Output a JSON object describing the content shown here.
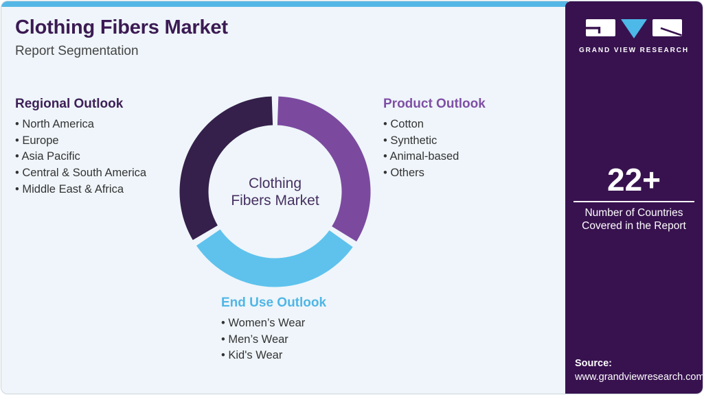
{
  "header": {
    "title": "Clothing Fibers Market",
    "subtitle": "Report Segmentation"
  },
  "outlooks": {
    "regional": {
      "heading": "Regional Outlook",
      "items": [
        "North America",
        "Europe",
        "Asia Pacific",
        "Central & South America",
        "Middle East & Africa"
      ]
    },
    "product": {
      "heading": "Product Outlook",
      "items": [
        "Cotton",
        "Synthetic",
        "Animal-based",
        "Others"
      ]
    },
    "end_use": {
      "heading": "End Use Outlook",
      "items": [
        "Women’s Wear",
        "Men’s Wear",
        "Kid's Wear"
      ]
    }
  },
  "chart_data": {
    "type": "donut",
    "title": "Clothing Fibers Market Report Segmentation",
    "center_label": {
      "line1": "Clothing",
      "line2": "Fibers Market"
    },
    "inner_radius_ratio": 0.7,
    "segments": [
      {
        "name": "Product Outlook",
        "color": "#7b4a9f",
        "start_angle": 2,
        "end_angle": 121.5
      },
      {
        "name": "End Use Outlook",
        "color": "#5ec2ed",
        "start_angle": 125.5,
        "end_angle": 235.5
      },
      {
        "name": "Regional Outlook",
        "color": "#34204a",
        "start_angle": 239.5,
        "end_angle": 358
      }
    ]
  },
  "sidebar": {
    "logo": {
      "brand": "GRAND VIEW RESEARCH"
    },
    "stat": {
      "value": "22+",
      "caption_line1": "Number of Countries",
      "caption_line2": "Covered in the Report"
    },
    "source": {
      "label": "Source:",
      "url": "www.grandviewresearch.com"
    }
  },
  "colors": {
    "accent_bar": "#55b7e5",
    "background": "#eff5fa",
    "sidebar_background": "#38124f",
    "title": "#3b1a53",
    "regional_heading": "#3e2058",
    "product_heading": "#7f4fa5",
    "end_use_heading": "#4fb6e6",
    "body_text": "#333333"
  }
}
